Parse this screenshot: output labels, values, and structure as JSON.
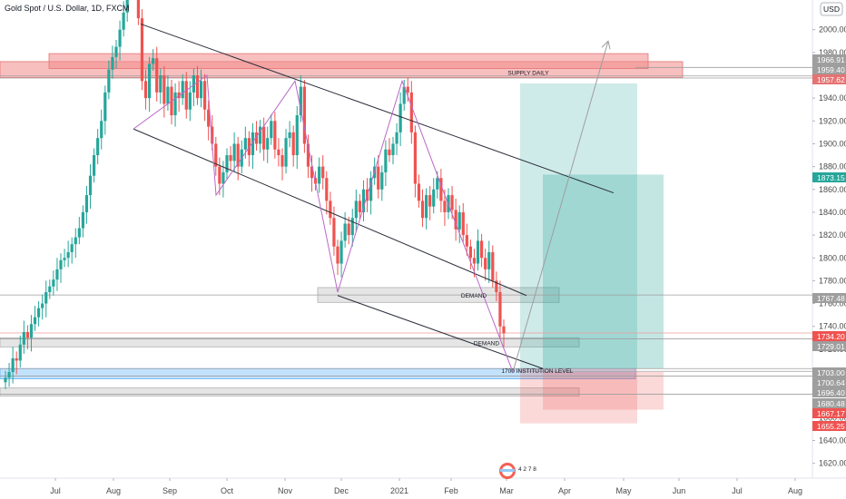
{
  "chart_data": {
    "type": "candlestick",
    "title": "Gold Spot / U.S. Dollar, 1D, FXCM",
    "currency": "USD",
    "x_tick_labels": [
      "Jul",
      "Aug",
      "Sep",
      "Oct",
      "Nov",
      "Dec",
      "2021",
      "Feb",
      "Mar",
      "Apr",
      "May",
      "Jun",
      "Jul",
      "Aug"
    ],
    "y_tick_labels": [
      "2000.00",
      "1980.00",
      "1960.00",
      "1940.00",
      "1920.00",
      "1900.00",
      "1880.00",
      "1860.00",
      "1840.00",
      "1820.00",
      "1800.00",
      "1780.00",
      "1760.00",
      "1740.00",
      "1720.00",
      "1700.00",
      "1680.00",
      "1660.00",
      "1640.00",
      "1620.00"
    ],
    "ylim": [
      1607,
      2026
    ],
    "price_tags": [
      {
        "value": "1966.91",
        "color": "#9e9e9e"
      },
      {
        "value": "1959.40",
        "color": "#9e9e9e"
      },
      {
        "value": "1957.62",
        "color": "#e57373"
      },
      {
        "value": "1873.15",
        "color": "#26a69a"
      },
      {
        "value": "1767.48",
        "color": "#9e9e9e"
      },
      {
        "value": "1734.20",
        "color": "#ef5350"
      },
      {
        "value": "1729.01",
        "color": "#9e9e9e"
      },
      {
        "value": "1703.00",
        "color": "#9e9e9e"
      },
      {
        "value": "1700.64",
        "color": "#9e9e9e"
      },
      {
        "value": "1696.40",
        "color": "#9e9e9e"
      },
      {
        "value": "1680.48",
        "color": "#9e9e9e"
      },
      {
        "value": "1667.17",
        "color": "#ef5350"
      },
      {
        "value": "1655.25",
        "color": "#ef5350"
      }
    ],
    "annotations": [
      {
        "text": "SUPPLY DAILY"
      },
      {
        "text": "DEMAND"
      },
      {
        "text": "DEMAND"
      },
      {
        "text": "1700 INSTITUTION LEVEL"
      }
    ],
    "zones": [
      {
        "kind": "supply",
        "top": 1972,
        "bottom": 1958,
        "color": "#f28b8b"
      },
      {
        "kind": "demand",
        "top": 1774,
        "bottom": 1761,
        "color": "#cfcfcf"
      },
      {
        "kind": "demand",
        "top": 1730,
        "bottom": 1722,
        "color": "#cfcfcf"
      },
      {
        "kind": "institution",
        "top": 1703,
        "bottom": 1694,
        "color": "#90caf9"
      },
      {
        "kind": "demand",
        "top": 1686,
        "bottom": 1679,
        "color": "#cfcfcf"
      }
    ],
    "grid": false,
    "legend": "none",
    "badge_text": "4 2 7 8"
  }
}
